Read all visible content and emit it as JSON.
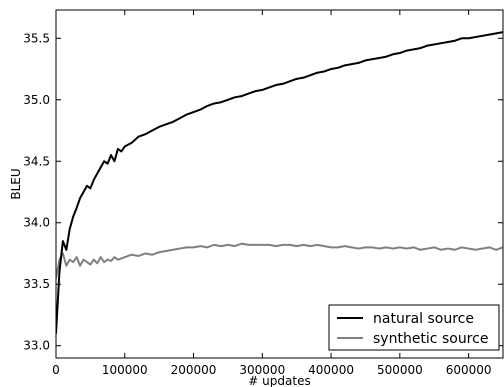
{
  "chart_data": {
    "type": "line",
    "xlabel": "# updates",
    "ylabel": "BLEU",
    "xlim": [
      0,
      650000
    ],
    "ylim": [
      32.9,
      35.73
    ],
    "xticks": [
      0,
      100000,
      200000,
      300000,
      400000,
      500000,
      600000
    ],
    "xtick_labels": [
      "0",
      "100000",
      "200000",
      "300000",
      "400000",
      "500000",
      "600000"
    ],
    "yticks": [
      33.0,
      33.5,
      34.0,
      34.5,
      35.0,
      35.5
    ],
    "ytick_labels": [
      "33.0",
      "33.5",
      "34.0",
      "34.5",
      "35.0",
      "35.5"
    ],
    "grid": false,
    "legend_position": "lower-right",
    "series": [
      {
        "name": "natural source",
        "color": "#000000",
        "x": [
          0,
          5000,
          10000,
          15000,
          20000,
          25000,
          30000,
          35000,
          40000,
          45000,
          50000,
          55000,
          60000,
          65000,
          70000,
          75000,
          80000,
          85000,
          90000,
          95000,
          100000,
          110000,
          120000,
          130000,
          140000,
          150000,
          160000,
          170000,
          180000,
          190000,
          200000,
          210000,
          220000,
          230000,
          240000,
          250000,
          260000,
          270000,
          280000,
          290000,
          300000,
          310000,
          320000,
          330000,
          340000,
          350000,
          360000,
          370000,
          380000,
          390000,
          400000,
          410000,
          420000,
          430000,
          440000,
          450000,
          460000,
          470000,
          480000,
          490000,
          500000,
          510000,
          520000,
          530000,
          540000,
          550000,
          560000,
          570000,
          580000,
          590000,
          600000,
          610000,
          620000,
          630000,
          640000,
          650000
        ],
        "values": [
          33.1,
          33.6,
          33.85,
          33.78,
          33.95,
          34.05,
          34.12,
          34.2,
          34.25,
          34.3,
          34.28,
          34.35,
          34.4,
          34.45,
          34.5,
          34.48,
          34.55,
          34.5,
          34.6,
          34.58,
          34.62,
          34.65,
          34.7,
          34.72,
          34.75,
          34.78,
          34.8,
          34.82,
          34.85,
          34.88,
          34.9,
          34.92,
          34.95,
          34.97,
          34.98,
          35.0,
          35.02,
          35.03,
          35.05,
          35.07,
          35.08,
          35.1,
          35.12,
          35.13,
          35.15,
          35.17,
          35.18,
          35.2,
          35.22,
          35.23,
          35.25,
          35.26,
          35.28,
          35.29,
          35.3,
          35.32,
          35.33,
          35.34,
          35.35,
          35.37,
          35.38,
          35.4,
          35.41,
          35.42,
          35.44,
          35.45,
          35.46,
          35.47,
          35.48,
          35.5,
          35.5,
          35.51,
          35.52,
          35.53,
          35.54,
          35.55
        ]
      },
      {
        "name": "synthetic source",
        "color": "#808080",
        "x": [
          0,
          5000,
          10000,
          15000,
          20000,
          25000,
          30000,
          35000,
          40000,
          45000,
          50000,
          55000,
          60000,
          65000,
          70000,
          75000,
          80000,
          85000,
          90000,
          95000,
          100000,
          110000,
          120000,
          130000,
          140000,
          150000,
          160000,
          170000,
          180000,
          190000,
          200000,
          210000,
          220000,
          230000,
          240000,
          250000,
          260000,
          270000,
          280000,
          290000,
          300000,
          310000,
          320000,
          330000,
          340000,
          350000,
          360000,
          370000,
          380000,
          390000,
          400000,
          410000,
          420000,
          430000,
          440000,
          450000,
          460000,
          470000,
          480000,
          490000,
          500000,
          510000,
          520000,
          530000,
          540000,
          550000,
          560000,
          570000,
          580000,
          590000,
          600000,
          610000,
          620000,
          630000,
          640000,
          650000
        ],
        "values": [
          33.55,
          33.7,
          33.75,
          33.65,
          33.7,
          33.68,
          33.72,
          33.65,
          33.7,
          33.68,
          33.66,
          33.7,
          33.67,
          33.72,
          33.68,
          33.7,
          33.69,
          33.72,
          33.7,
          33.71,
          33.72,
          33.74,
          33.73,
          33.75,
          33.74,
          33.76,
          33.77,
          33.78,
          33.79,
          33.8,
          33.8,
          33.81,
          33.8,
          33.82,
          33.81,
          33.82,
          33.81,
          33.83,
          33.82,
          33.82,
          33.82,
          33.82,
          33.81,
          33.82,
          33.82,
          33.81,
          33.82,
          33.81,
          33.82,
          33.81,
          33.8,
          33.8,
          33.81,
          33.8,
          33.79,
          33.8,
          33.8,
          33.79,
          33.8,
          33.79,
          33.8,
          33.79,
          33.8,
          33.78,
          33.79,
          33.8,
          33.78,
          33.79,
          33.78,
          33.8,
          33.79,
          33.78,
          33.79,
          33.8,
          33.78,
          33.8
        ]
      }
    ]
  }
}
